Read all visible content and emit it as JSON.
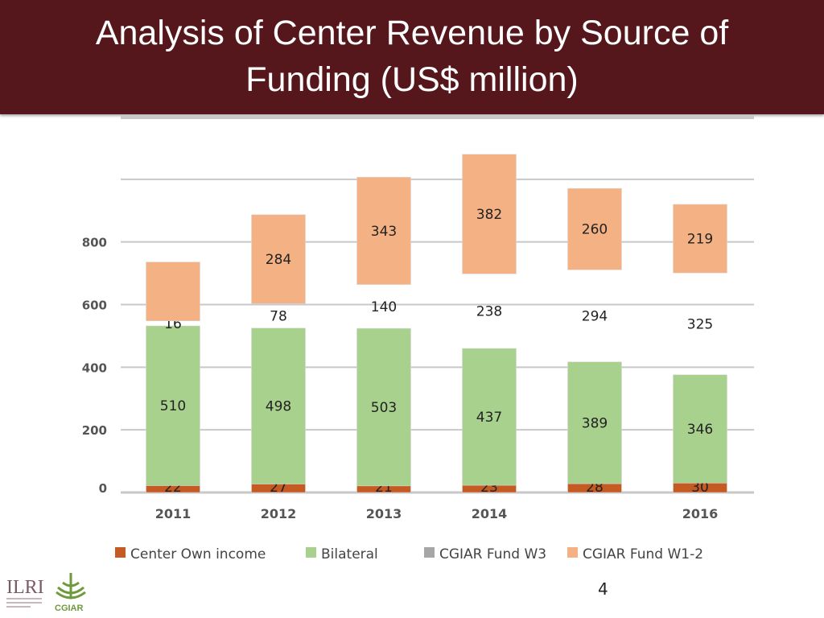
{
  "slide": {
    "title": "Analysis of Center Revenue by Source of Funding (US$ million)",
    "page_number": "4",
    "logos": [
      "ILRI",
      "CGIAR"
    ]
  },
  "chart_data": {
    "type": "bar",
    "stacked": true,
    "title": "",
    "categories": [
      "2011",
      "2012",
      "2013",
      "2014",
      "",
      "2016"
    ],
    "ylim": [
      0,
      1200
    ],
    "yticks": [
      "0",
      "200",
      "400",
      "600",
      "800"
    ],
    "grid": true,
    "legend_position": "bottom",
    "series": [
      {
        "name": "Center Own income",
        "color": "#c55a22",
        "values": [
          22,
          27,
          21,
          23,
          28,
          30
        ],
        "labels": [
          "22",
          "27",
          "21",
          "23",
          "28",
          "30"
        ]
      },
      {
        "name": "Bilateral",
        "color": "#a9d18e",
        "values": [
          510,
          498,
          503,
          437,
          389,
          346
        ],
        "labels": [
          "510",
          "498",
          "503",
          "437",
          "389",
          "346"
        ]
      },
      {
        "name": "CGIAR Fund W3",
        "color": "#a6a6a6",
        "values": [
          16,
          78,
          140,
          238,
          294,
          325
        ],
        "labels": [
          "16",
          "78",
          "140",
          "238",
          "294",
          "325"
        ],
        "bar_visible": false
      },
      {
        "name": "CGIAR Fund W1-2",
        "color": "#f4b183",
        "values": [
          188,
          284,
          343,
          382,
          260,
          219
        ],
        "labels": [
          "",
          "284",
          "343",
          "382",
          "260",
          "219"
        ]
      }
    ]
  }
}
